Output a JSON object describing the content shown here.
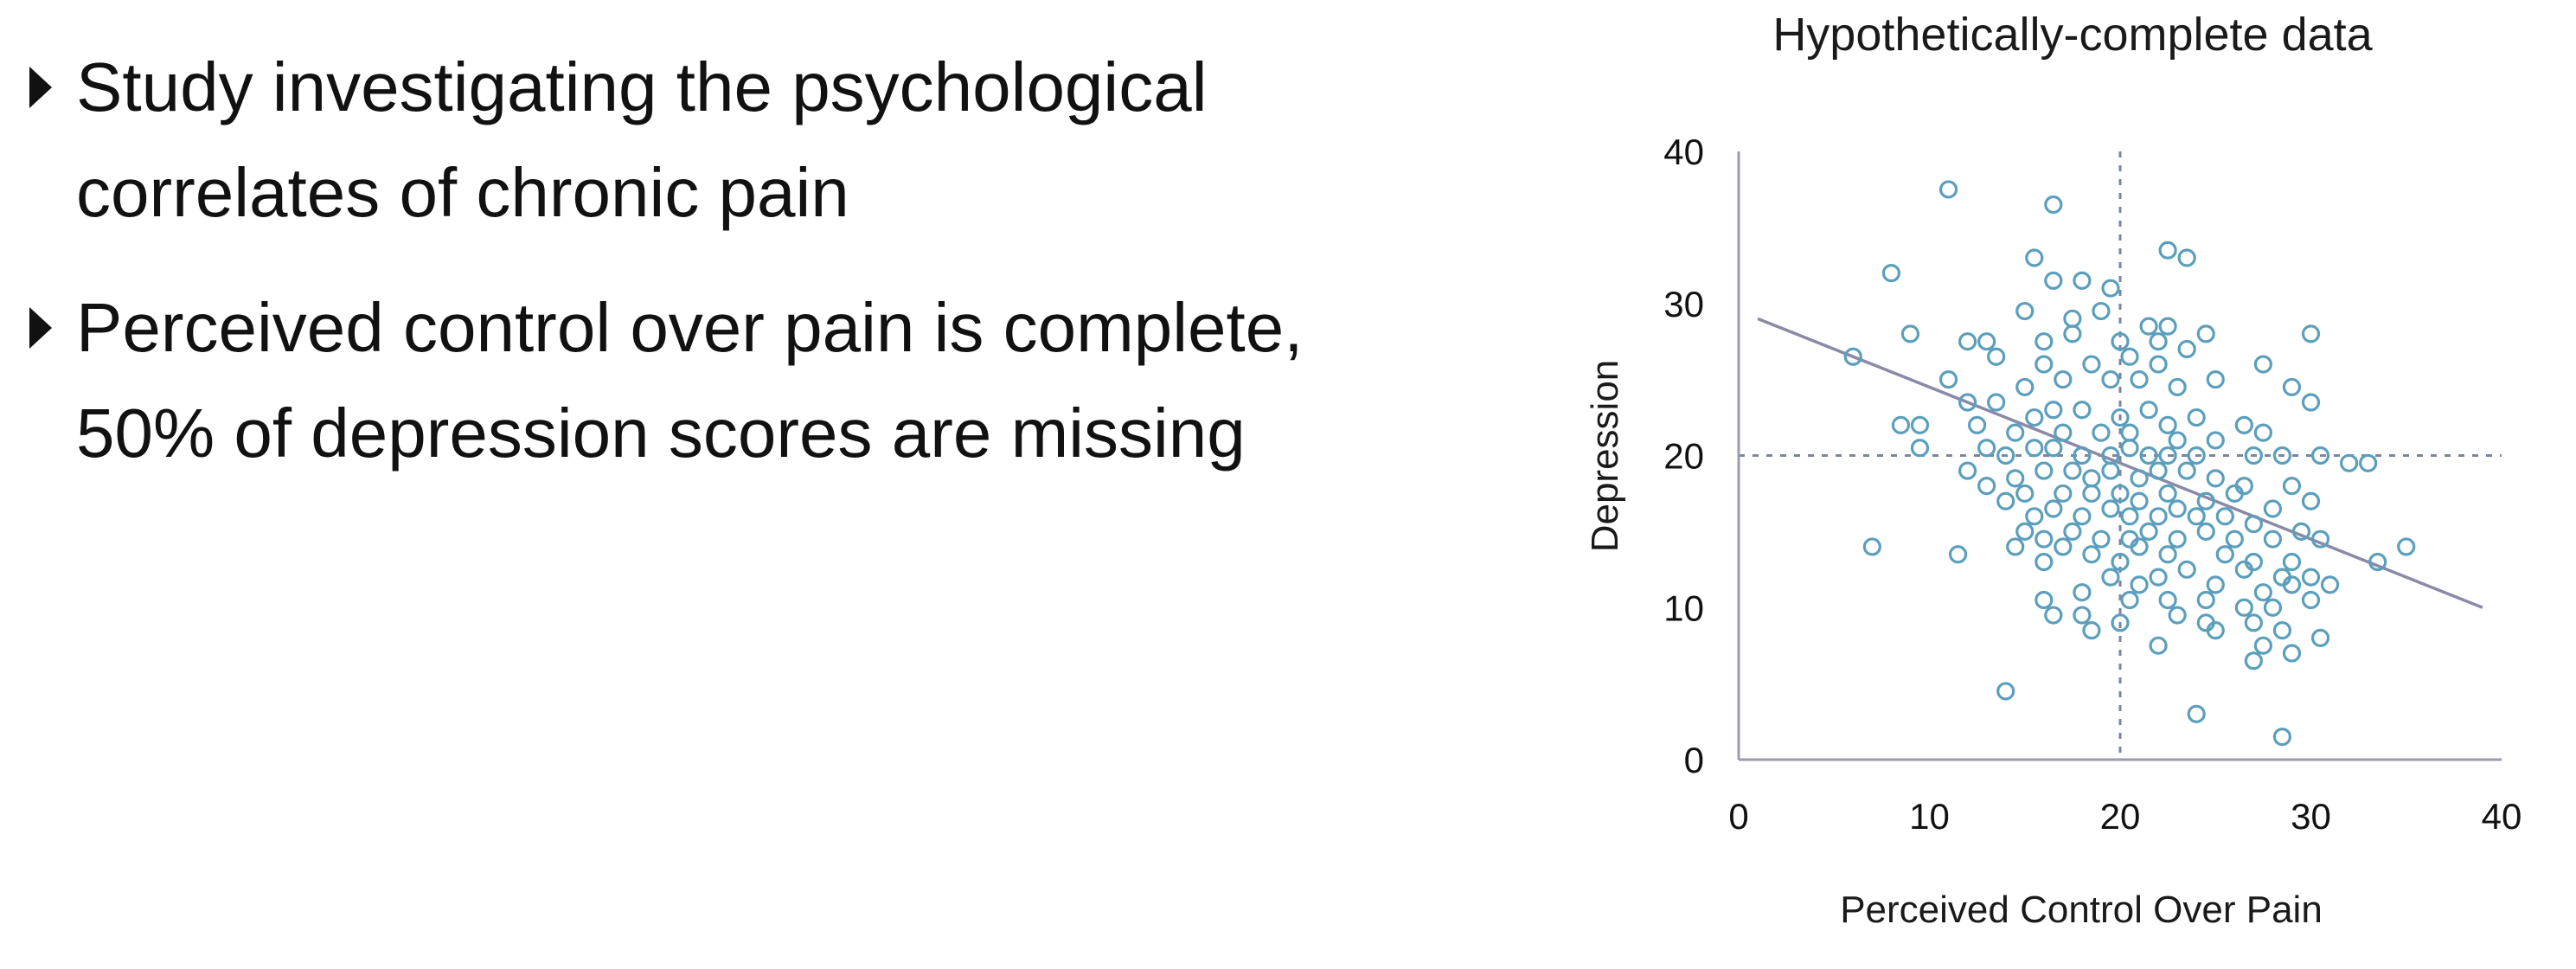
{
  "bullets": [
    {
      "text": "Study investigating the psychological correlates of chronic pain"
    },
    {
      "text": "Perceived control over pain is complete, 50% of depression scores are missing"
    }
  ],
  "chart_data": {
    "type": "scatter",
    "title": "Hypothetically-complete data",
    "xlabel": "Perceived Control Over Pain",
    "ylabel": "Depression",
    "xlim": [
      0,
      40
    ],
    "ylim": [
      0,
      40
    ],
    "xticks": [
      "0",
      "10",
      "20",
      "30",
      "40"
    ],
    "yticks": [
      "0",
      "10",
      "20",
      "30",
      "40"
    ],
    "grid": false,
    "reference_lines": {
      "x": 20,
      "y": 20
    },
    "regression_line": {
      "x1": 1,
      "y1": 29,
      "x2": 39,
      "y2": 10
    },
    "colors": {
      "points": "#5b9fbc",
      "line": "#8a8aa8",
      "reference": "#7a86a0",
      "axis": "#9a9ab0"
    },
    "points": [
      [
        11,
        37.5
      ],
      [
        16.5,
        36.5
      ],
      [
        8,
        32
      ],
      [
        15.5,
        33
      ],
      [
        22.5,
        33.5
      ],
      [
        23.5,
        33
      ],
      [
        16.5,
        31.5
      ],
      [
        18,
        31.5
      ],
      [
        19.5,
        31
      ],
      [
        15,
        29.5
      ],
      [
        17.5,
        29
      ],
      [
        19,
        29.5
      ],
      [
        21.5,
        28.5
      ],
      [
        22.5,
        28.5
      ],
      [
        24.5,
        28
      ],
      [
        30,
        28
      ],
      [
        9,
        28
      ],
      [
        12,
        27.5
      ],
      [
        13,
        27.5
      ],
      [
        16,
        27.5
      ],
      [
        17.5,
        28
      ],
      [
        20,
        27.5
      ],
      [
        22,
        27.5
      ],
      [
        23.5,
        27
      ],
      [
        27.5,
        26
      ],
      [
        13.5,
        26.5
      ],
      [
        16,
        26
      ],
      [
        18.5,
        26
      ],
      [
        20.5,
        26.5
      ],
      [
        22,
        26
      ],
      [
        25,
        25
      ],
      [
        6,
        26.5
      ],
      [
        11,
        25
      ],
      [
        15,
        24.5
      ],
      [
        17,
        25
      ],
      [
        19.5,
        25
      ],
      [
        21,
        25
      ],
      [
        23,
        24.5
      ],
      [
        29,
        24.5
      ],
      [
        30,
        23.5
      ],
      [
        12,
        23.5
      ],
      [
        13.5,
        23.5
      ],
      [
        15.5,
        22.5
      ],
      [
        16.5,
        23
      ],
      [
        18,
        23
      ],
      [
        20,
        22.5
      ],
      [
        21.5,
        23
      ],
      [
        22.5,
        22
      ],
      [
        24,
        22.5
      ],
      [
        26.5,
        22
      ],
      [
        8.5,
        22
      ],
      [
        9.5,
        22
      ],
      [
        12.5,
        22
      ],
      [
        14.5,
        21.5
      ],
      [
        17,
        21.5
      ],
      [
        19,
        21.5
      ],
      [
        20.5,
        21.5
      ],
      [
        23,
        21
      ],
      [
        25,
        21
      ],
      [
        27.5,
        21.5
      ],
      [
        9.5,
        20.5
      ],
      [
        13,
        20.5
      ],
      [
        14,
        20
      ],
      [
        15.5,
        20.5
      ],
      [
        16.5,
        20.5
      ],
      [
        18,
        20
      ],
      [
        19.5,
        20
      ],
      [
        20.5,
        20.5
      ],
      [
        21.5,
        20
      ],
      [
        22.5,
        20
      ],
      [
        24,
        20
      ],
      [
        27,
        20
      ],
      [
        28.5,
        20
      ],
      [
        30.5,
        20
      ],
      [
        32,
        19.5
      ],
      [
        33,
        19.5
      ],
      [
        12,
        19
      ],
      [
        14.5,
        18.5
      ],
      [
        16,
        19
      ],
      [
        17.5,
        19
      ],
      [
        18.5,
        18.5
      ],
      [
        19.5,
        19
      ],
      [
        21,
        18.5
      ],
      [
        22,
        19
      ],
      [
        23.5,
        19
      ],
      [
        25,
        18.5
      ],
      [
        26.5,
        18
      ],
      [
        29,
        18
      ],
      [
        13,
        18
      ],
      [
        15,
        17.5
      ],
      [
        17,
        17.5
      ],
      [
        18.5,
        17.5
      ],
      [
        20,
        17.5
      ],
      [
        21,
        17
      ],
      [
        22.5,
        17.5
      ],
      [
        24.5,
        17
      ],
      [
        26,
        17.5
      ],
      [
        28,
        16.5
      ],
      [
        30,
        17
      ],
      [
        14,
        17
      ],
      [
        15.5,
        16
      ],
      [
        16.5,
        16.5
      ],
      [
        18,
        16
      ],
      [
        19.5,
        16.5
      ],
      [
        20.5,
        16
      ],
      [
        22,
        16
      ],
      [
        23,
        16.5
      ],
      [
        24,
        16
      ],
      [
        25.5,
        16
      ],
      [
        27,
        15.5
      ],
      [
        29.5,
        15
      ],
      [
        15,
        15
      ],
      [
        16,
        14.5
      ],
      [
        17.5,
        15
      ],
      [
        19,
        14.5
      ],
      [
        20.5,
        14.5
      ],
      [
        21.5,
        15
      ],
      [
        23,
        14.5
      ],
      [
        24.5,
        15
      ],
      [
        26,
        14.5
      ],
      [
        28,
        14.5
      ],
      [
        30.5,
        14.5
      ],
      [
        35,
        14
      ],
      [
        7,
        14
      ],
      [
        11.5,
        13.5
      ],
      [
        14.5,
        14
      ],
      [
        17,
        14
      ],
      [
        18.5,
        13.5
      ],
      [
        21,
        14
      ],
      [
        22.5,
        13.5
      ],
      [
        25.5,
        13.5
      ],
      [
        27,
        13
      ],
      [
        29,
        13
      ],
      [
        33.5,
        13
      ],
      [
        16,
        13
      ],
      [
        20,
        13
      ],
      [
        23.5,
        12.5
      ],
      [
        26.5,
        12.5
      ],
      [
        28.5,
        12
      ],
      [
        30,
        12
      ],
      [
        19.5,
        12
      ],
      [
        21,
        11.5
      ],
      [
        22,
        12
      ],
      [
        25,
        11.5
      ],
      [
        27.5,
        11
      ],
      [
        29,
        11.5
      ],
      [
        31,
        11.5
      ],
      [
        18,
        11
      ],
      [
        20.5,
        10.5
      ],
      [
        22.5,
        10.5
      ],
      [
        24.5,
        10.5
      ],
      [
        26.5,
        10
      ],
      [
        28,
        10
      ],
      [
        30,
        10.5
      ],
      [
        16,
        10.5
      ],
      [
        16.5,
        9.5
      ],
      [
        18,
        9.5
      ],
      [
        23,
        9.5
      ],
      [
        24.5,
        9
      ],
      [
        27,
        9
      ],
      [
        28.5,
        8.5
      ],
      [
        30.5,
        8
      ],
      [
        18.5,
        8.5
      ],
      [
        20,
        9
      ],
      [
        25,
        8.5
      ],
      [
        27.5,
        7.5
      ],
      [
        29,
        7
      ],
      [
        22,
        7.5
      ],
      [
        27,
        6.5
      ],
      [
        14,
        4.5
      ],
      [
        24,
        3
      ],
      [
        28.5,
        1.5
      ]
    ]
  }
}
